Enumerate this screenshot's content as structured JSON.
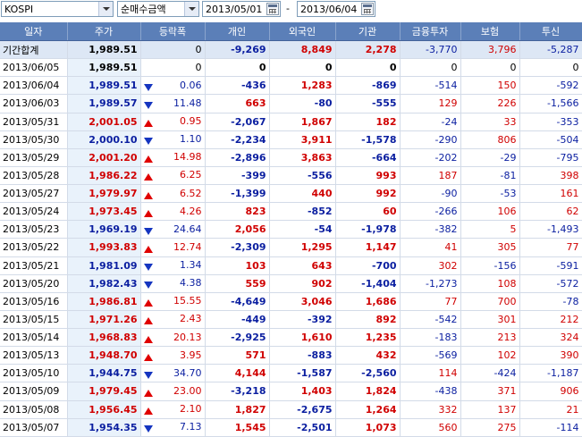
{
  "toolbar": {
    "market": "KOSPI",
    "metric": "순매수금액",
    "date_from": "2013/05/01",
    "separator": "-",
    "date_to": "2013/06/04"
  },
  "columns": [
    "일자",
    "주가",
    "등락폭",
    "개인",
    "외국인",
    "기관",
    "금융투자",
    "보험",
    "투신"
  ],
  "rows": [
    {
      "date": "기간합계",
      "price": "1,989.51",
      "dir": "none",
      "chg": "0",
      "ind": "-9,269",
      "frg": "8,849",
      "ins": "2,278",
      "fin": "-3,770",
      "insu": "3,796",
      "trust": "-5,287",
      "sum": true
    },
    {
      "date": "2013/06/05",
      "price": "1,989.51",
      "dir": "none",
      "chg": "0",
      "ind": "0",
      "frg": "0",
      "ins": "0",
      "fin": "0",
      "insu": "0",
      "trust": "0"
    },
    {
      "date": "2013/06/04",
      "price": "1,989.51",
      "dir": "down",
      "chg": "0.06",
      "ind": "-436",
      "frg": "1,283",
      "ins": "-869",
      "fin": "-514",
      "insu": "150",
      "trust": "-592"
    },
    {
      "date": "2013/06/03",
      "price": "1,989.57",
      "dir": "down",
      "chg": "11.48",
      "ind": "663",
      "frg": "-80",
      "ins": "-555",
      "fin": "129",
      "insu": "226",
      "trust": "-1,566"
    },
    {
      "date": "2013/05/31",
      "price": "2,001.05",
      "dir": "up",
      "chg": "0.95",
      "ind": "-2,067",
      "frg": "1,867",
      "ins": "182",
      "fin": "-24",
      "insu": "33",
      "trust": "-353"
    },
    {
      "date": "2013/05/30",
      "price": "2,000.10",
      "dir": "down",
      "chg": "1.10",
      "ind": "-2,234",
      "frg": "3,911",
      "ins": "-1,578",
      "fin": "-290",
      "insu": "806",
      "trust": "-504"
    },
    {
      "date": "2013/05/29",
      "price": "2,001.20",
      "dir": "up",
      "chg": "14.98",
      "ind": "-2,896",
      "frg": "3,863",
      "ins": "-664",
      "fin": "-202",
      "insu": "-29",
      "trust": "-795"
    },
    {
      "date": "2013/05/28",
      "price": "1,986.22",
      "dir": "up",
      "chg": "6.25",
      "ind": "-399",
      "frg": "-556",
      "ins": "993",
      "fin": "187",
      "insu": "-81",
      "trust": "398"
    },
    {
      "date": "2013/05/27",
      "price": "1,979.97",
      "dir": "up",
      "chg": "6.52",
      "ind": "-1,399",
      "frg": "440",
      "ins": "992",
      "fin": "-90",
      "insu": "-53",
      "trust": "161"
    },
    {
      "date": "2013/05/24",
      "price": "1,973.45",
      "dir": "up",
      "chg": "4.26",
      "ind": "823",
      "frg": "-852",
      "ins": "60",
      "fin": "-266",
      "insu": "106",
      "trust": "62"
    },
    {
      "date": "2013/05/23",
      "price": "1,969.19",
      "dir": "down",
      "chg": "24.64",
      "ind": "2,056",
      "frg": "-54",
      "ins": "-1,978",
      "fin": "-382",
      "insu": "5",
      "trust": "-1,493"
    },
    {
      "date": "2013/05/22",
      "price": "1,993.83",
      "dir": "up",
      "chg": "12.74",
      "ind": "-2,309",
      "frg": "1,295",
      "ins": "1,147",
      "fin": "41",
      "insu": "305",
      "trust": "77"
    },
    {
      "date": "2013/05/21",
      "price": "1,981.09",
      "dir": "down",
      "chg": "1.34",
      "ind": "103",
      "frg": "643",
      "ins": "-700",
      "fin": "302",
      "insu": "-156",
      "trust": "-591"
    },
    {
      "date": "2013/05/20",
      "price": "1,982.43",
      "dir": "down",
      "chg": "4.38",
      "ind": "559",
      "frg": "902",
      "ins": "-1,404",
      "fin": "-1,273",
      "insu": "108",
      "trust": "-572"
    },
    {
      "date": "2013/05/16",
      "price": "1,986.81",
      "dir": "up",
      "chg": "15.55",
      "ind": "-4,649",
      "frg": "3,046",
      "ins": "1,686",
      "fin": "77",
      "insu": "700",
      "trust": "-78"
    },
    {
      "date": "2013/05/15",
      "price": "1,971.26",
      "dir": "up",
      "chg": "2.43",
      "ind": "-449",
      "frg": "-392",
      "ins": "892",
      "fin": "-542",
      "insu": "301",
      "trust": "212"
    },
    {
      "date": "2013/05/14",
      "price": "1,968.83",
      "dir": "up",
      "chg": "20.13",
      "ind": "-2,925",
      "frg": "1,610",
      "ins": "1,235",
      "fin": "-183",
      "insu": "213",
      "trust": "324"
    },
    {
      "date": "2013/05/13",
      "price": "1,948.70",
      "dir": "up",
      "chg": "3.95",
      "ind": "571",
      "frg": "-883",
      "ins": "432",
      "fin": "-569",
      "insu": "102",
      "trust": "390"
    },
    {
      "date": "2013/05/10",
      "price": "1,944.75",
      "dir": "down",
      "chg": "34.70",
      "ind": "4,144",
      "frg": "-1,587",
      "ins": "-2,560",
      "fin": "114",
      "insu": "-424",
      "trust": "-1,187"
    },
    {
      "date": "2013/05/09",
      "price": "1,979.45",
      "dir": "up",
      "chg": "23.00",
      "ind": "-3,218",
      "frg": "1,403",
      "ins": "1,824",
      "fin": "-438",
      "insu": "371",
      "trust": "906"
    },
    {
      "date": "2013/05/08",
      "price": "1,956.45",
      "dir": "up",
      "chg": "2.10",
      "ind": "1,827",
      "frg": "-2,675",
      "ins": "1,264",
      "fin": "332",
      "insu": "137",
      "trust": "21"
    },
    {
      "date": "2013/05/07",
      "price": "1,954.35",
      "dir": "down",
      "chg": "7.13",
      "ind": "1,545",
      "frg": "-2,501",
      "ins": "1,073",
      "fin": "560",
      "insu": "275",
      "trust": "-114"
    }
  ],
  "colors": {
    "header_bg": "#5b7fb8",
    "up": "#d00000",
    "down": "#0a1ea0",
    "price_bg": "#e9f2fb"
  }
}
